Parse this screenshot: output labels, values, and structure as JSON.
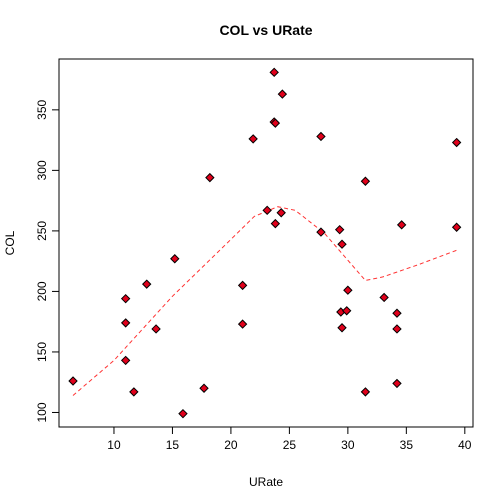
{
  "chart_data": {
    "type": "scatter",
    "title": "COL vs URate",
    "xlabel": "URate",
    "ylabel": "COL",
    "xlim": [
      5.3,
      40.7
    ],
    "ylim": [
      88,
      392
    ],
    "x_ticks": [
      10,
      15,
      20,
      25,
      30,
      35,
      40
    ],
    "y_ticks": [
      100,
      150,
      200,
      250,
      300,
      350
    ],
    "grid": false,
    "colors": {
      "points": "#e0001b",
      "trend": "#ff3333",
      "axes": "#000000"
    },
    "points": [
      {
        "x": 6.5,
        "y": 126
      },
      {
        "x": 11.0,
        "y": 194
      },
      {
        "x": 11.0,
        "y": 174
      },
      {
        "x": 11.0,
        "y": 143
      },
      {
        "x": 11.7,
        "y": 117
      },
      {
        "x": 12.8,
        "y": 206
      },
      {
        "x": 13.6,
        "y": 169
      },
      {
        "x": 15.2,
        "y": 227
      },
      {
        "x": 15.9,
        "y": 99
      },
      {
        "x": 17.7,
        "y": 120
      },
      {
        "x": 18.2,
        "y": 294
      },
      {
        "x": 21.0,
        "y": 205
      },
      {
        "x": 21.0,
        "y": 173
      },
      {
        "x": 21.9,
        "y": 326
      },
      {
        "x": 23.1,
        "y": 267
      },
      {
        "x": 23.7,
        "y": 381
      },
      {
        "x": 23.7,
        "y": 340
      },
      {
        "x": 23.8,
        "y": 339
      },
      {
        "x": 23.8,
        "y": 256
      },
      {
        "x": 24.4,
        "y": 363
      },
      {
        "x": 24.3,
        "y": 265
      },
      {
        "x": 27.7,
        "y": 328
      },
      {
        "x": 27.7,
        "y": 249
      },
      {
        "x": 29.3,
        "y": 251
      },
      {
        "x": 29.5,
        "y": 239
      },
      {
        "x": 29.4,
        "y": 183
      },
      {
        "x": 29.5,
        "y": 170
      },
      {
        "x": 29.9,
        "y": 184
      },
      {
        "x": 30.0,
        "y": 201
      },
      {
        "x": 31.5,
        "y": 291
      },
      {
        "x": 31.5,
        "y": 117
      },
      {
        "x": 33.1,
        "y": 195
      },
      {
        "x": 34.2,
        "y": 182
      },
      {
        "x": 34.2,
        "y": 169
      },
      {
        "x": 34.2,
        "y": 124
      },
      {
        "x": 34.6,
        "y": 255
      },
      {
        "x": 39.3,
        "y": 323
      },
      {
        "x": 39.3,
        "y": 253
      }
    ],
    "trend_line": [
      {
        "x": 6.5,
        "y": 114
      },
      {
        "x": 10.0,
        "y": 143
      },
      {
        "x": 15.0,
        "y": 196
      },
      {
        "x": 20.0,
        "y": 243
      },
      {
        "x": 22.0,
        "y": 262
      },
      {
        "x": 24.0,
        "y": 270
      },
      {
        "x": 25.5,
        "y": 267
      },
      {
        "x": 28.0,
        "y": 248
      },
      {
        "x": 31.5,
        "y": 209
      },
      {
        "x": 33.0,
        "y": 212
      },
      {
        "x": 36.0,
        "y": 222
      },
      {
        "x": 39.3,
        "y": 234
      }
    ]
  }
}
